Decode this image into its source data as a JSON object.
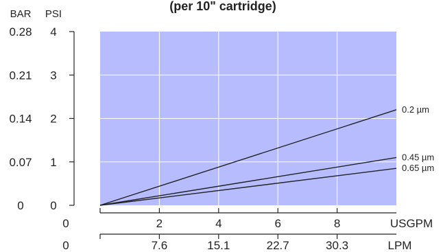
{
  "chart_data": {
    "type": "line",
    "title": "(per 10\" cartridge)",
    "plot_background": "#b7bcff",
    "line_color": "#222222",
    "grid": true,
    "y_axis": {
      "psi_label": "PSI",
      "bar_label": "BAR",
      "ylim": [
        0,
        4
      ],
      "psi_ticks": [
        "0",
        "1",
        "2",
        "3",
        "4"
      ],
      "bar_ticks": [
        "0",
        "0.07",
        "0.14",
        "0.21",
        "0.28"
      ]
    },
    "x_axis": {
      "usgpm_label": "USGPM",
      "lpm_label": "LPM",
      "xlim": [
        0,
        10
      ],
      "usgpm_origin": "0",
      "usgpm_ticks": [
        {
          "x": 2,
          "label": "2"
        },
        {
          "x": 4,
          "label": "4"
        },
        {
          "x": 6,
          "label": "6"
        },
        {
          "x": 8,
          "label": "8"
        }
      ],
      "lpm_origin": "0",
      "lpm_ticks": [
        {
          "x": 2,
          "label": "7.6"
        },
        {
          "x": 4,
          "label": "15.1"
        },
        {
          "x": 6,
          "label": "22.7"
        },
        {
          "x": 8,
          "label": "30.3"
        }
      ]
    },
    "series": [
      {
        "name": "0.2 µm",
        "x": [
          0,
          10
        ],
        "y": [
          0,
          2.2
        ]
      },
      {
        "name": "0.45 µm",
        "x": [
          0,
          10
        ],
        "y": [
          0,
          1.1
        ]
      },
      {
        "name": "0.65 µm",
        "x": [
          0,
          10
        ],
        "y": [
          0,
          0.85
        ]
      }
    ]
  }
}
